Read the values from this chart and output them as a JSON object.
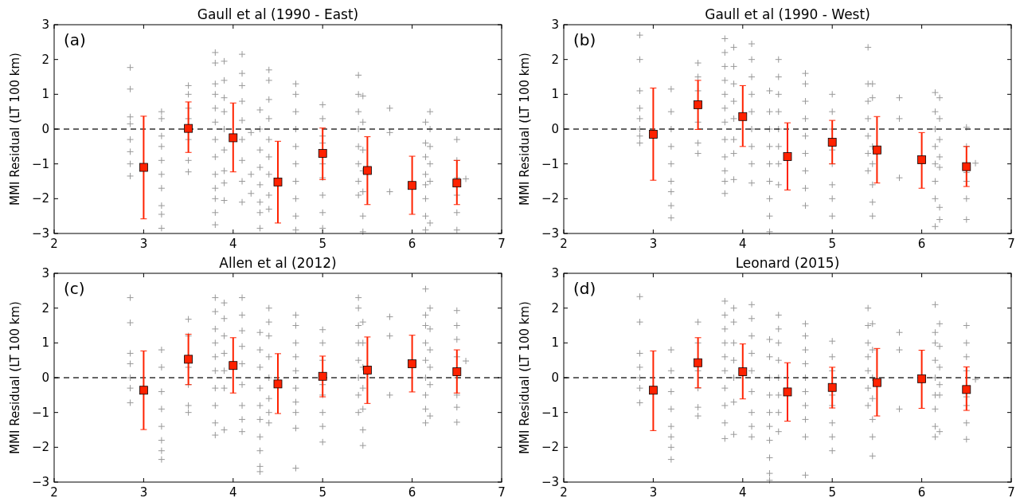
{
  "chart_data": [
    {
      "type": "scatter",
      "title": "Gaull et al (1990 - East)",
      "ylabel": "MMI Residual (LT 100 km)",
      "annotations": [
        "(a)"
      ],
      "xlim": [
        2,
        7
      ],
      "ylim": [
        -3,
        3
      ],
      "xticks": [
        2,
        3,
        4,
        5,
        6,
        7
      ],
      "yticks": [
        -3,
        -2,
        -1,
        0,
        1,
        2,
        3
      ],
      "ref_lines": [
        {
          "axis": "y",
          "value": 0,
          "color": "#333333",
          "line_style": "dashed"
        }
      ],
      "series": [
        {
          "type": "scatter",
          "color": "#999999",
          "marker": "cross",
          "x": [
            2.85,
            2.85,
            2.85,
            2.85,
            2.85,
            2.85,
            2.85,
            2.85,
            3.2,
            3.2,
            3.2,
            3.2,
            3.2,
            3.2,
            3.2,
            3.2,
            3.2,
            3.2,
            3.5,
            3.5,
            3.5,
            3.5,
            3.5,
            3.5,
            3.5,
            3.8,
            3.8,
            3.8,
            3.8,
            3.8,
            3.8,
            3.8,
            3.8,
            3.8,
            3.8,
            3.8,
            3.8,
            3.8,
            3.9,
            3.9,
            3.9,
            3.9,
            3.9,
            3.9,
            3.9,
            3.9,
            3.9,
            4.1,
            4.1,
            4.1,
            4.1,
            4.1,
            4.1,
            4.1,
            4.1,
            4.1,
            4.2,
            4.2,
            4.2,
            4.3,
            4.3,
            4.3,
            4.3,
            4.3,
            4.3,
            4.3,
            4.3,
            4.4,
            4.4,
            4.4,
            4.4,
            4.4,
            4.4,
            4.4,
            4.4,
            4.4,
            4.7,
            4.7,
            4.7,
            4.7,
            4.7,
            4.7,
            4.7,
            4.7,
            4.7,
            4.7,
            5.0,
            5.0,
            5.0,
            5.0,
            5.0,
            5.0,
            5.0,
            5.0,
            5.0,
            5.4,
            5.4,
            5.4,
            5.4,
            5.4,
            5.4,
            5.4,
            5.4,
            5.45,
            5.45,
            5.45,
            5.45,
            5.45,
            5.45,
            5.45,
            5.75,
            5.75,
            5.75,
            6.15,
            6.15,
            6.15,
            6.15,
            6.15,
            6.15,
            6.15,
            6.15,
            6.2,
            6.2,
            6.2,
            6.2,
            6.2,
            6.2,
            6.5,
            6.5,
            6.5,
            6.5,
            6.5,
            6.5,
            6.6
          ],
          "values": [
            1.77,
            1.15,
            0.35,
            0.15,
            -0.3,
            -0.65,
            -1.0,
            -1.35,
            0.5,
            0.3,
            -0.2,
            -0.5,
            -0.9,
            -1.3,
            -1.7,
            -2.2,
            -2.45,
            -2.85,
            1.25,
            1.0,
            0.6,
            0.3,
            -0.3,
            -0.9,
            -1.23,
            2.2,
            1.9,
            1.3,
            1.0,
            0.6,
            0.2,
            -0.3,
            -0.8,
            -1.3,
            -1.7,
            -2.0,
            -2.4,
            -2.75,
            1.95,
            1.4,
            0.9,
            0.5,
            0.0,
            -0.6,
            -1.2,
            -1.55,
            -2.05,
            2.15,
            1.6,
            1.25,
            0.8,
            0.25,
            -0.3,
            -0.9,
            -1.5,
            -2.1,
            -0.1,
            -1.3,
            -1.85,
            0.55,
            0.0,
            -0.6,
            -1.1,
            -1.6,
            -2.1,
            -2.4,
            -2.85,
            1.7,
            1.4,
            0.85,
            0.3,
            -0.3,
            -0.8,
            -1.3,
            -1.9,
            -2.3,
            1.3,
            1.0,
            0.5,
            0.0,
            -0.5,
            -1.0,
            -1.5,
            -2.0,
            -2.5,
            -2.9,
            0.7,
            0.3,
            -0.2,
            -0.4,
            -1.0,
            -1.4,
            -1.9,
            -2.4,
            -2.85,
            1.55,
            1.0,
            0.5,
            0.0,
            -0.5,
            -1.0,
            -1.5,
            -1.9,
            0.95,
            0.2,
            -0.6,
            -1.2,
            -1.8,
            -2.5,
            -2.95,
            0.6,
            -0.1,
            -1.8,
            0.2,
            -0.4,
            -0.8,
            -1.3,
            -1.6,
            -2.0,
            -2.5,
            -2.9,
            0.5,
            0.0,
            -0.5,
            -1.0,
            -1.5,
            -2.7,
            -0.3,
            -0.9,
            -1.4,
            -1.9,
            -2.4,
            -2.9,
            -1.43
          ]
        },
        {
          "type": "scatter",
          "color": "#ff2200",
          "marker": "square",
          "x": [
            3,
            3.5,
            4,
            4.5,
            5,
            5.5,
            6,
            6.5
          ],
          "values": [
            -1.1,
            0.02,
            -0.25,
            -1.52,
            -0.7,
            -1.19,
            -1.62,
            -1.55
          ],
          "errors": [
            [
              -2.58,
              0.37
            ],
            [
              -0.67,
              0.78
            ],
            [
              -1.23,
              0.75
            ],
            [
              -2.7,
              -0.35
            ],
            [
              -1.45,
              0.03
            ],
            [
              -2.17,
              -0.22
            ],
            [
              -2.45,
              -0.78
            ],
            [
              -2.17,
              -0.9
            ]
          ]
        }
      ]
    },
    {
      "type": "scatter",
      "title": "Gaull et al (1990 - West)",
      "ylabel": "MMI Residual (LT 100 km)",
      "annotations": [
        "(b)"
      ],
      "xlim": [
        2,
        7
      ],
      "ylim": [
        -3,
        3
      ],
      "xticks": [
        2,
        3,
        4,
        5,
        6,
        7
      ],
      "yticks": [
        -3,
        -2,
        -1,
        0,
        1,
        2,
        3
      ],
      "ref_lines": [
        {
          "axis": "y",
          "value": 0,
          "color": "#333333",
          "line_style": "dashed"
        }
      ],
      "series": [
        {
          "type": "scatter",
          "color": "#999999",
          "marker": "cross",
          "x": [
            2.85,
            2.85,
            2.85,
            2.85,
            2.85,
            2.85,
            2.85,
            2.85,
            3.2,
            3.2,
            3.2,
            3.2,
            3.2,
            3.2,
            3.2,
            3.2,
            3.2,
            3.5,
            3.5,
            3.5,
            3.5,
            3.5,
            3.5,
            3.8,
            3.8,
            3.8,
            3.8,
            3.8,
            3.8,
            3.8,
            3.8,
            3.8,
            3.8,
            3.8,
            3.8,
            3.9,
            3.9,
            3.9,
            3.9,
            3.9,
            3.9,
            3.9,
            3.9,
            4.1,
            4.1,
            4.1,
            4.1,
            4.1,
            4.1,
            4.1,
            4.1,
            4.1,
            4.3,
            4.3,
            4.3,
            4.3,
            4.3,
            4.3,
            4.3,
            4.3,
            4.3,
            4.4,
            4.4,
            4.4,
            4.4,
            4.4,
            4.4,
            4.4,
            4.4,
            4.7,
            4.7,
            4.7,
            4.7,
            4.7,
            4.7,
            4.7,
            4.7,
            4.7,
            5.0,
            5.0,
            5.0,
            5.0,
            5.0,
            5.0,
            5.0,
            5.0,
            5.4,
            5.4,
            5.4,
            5.4,
            5.4,
            5.4,
            5.4,
            5.45,
            5.45,
            5.45,
            5.45,
            5.45,
            5.45,
            5.45,
            5.75,
            5.75,
            5.75,
            6.15,
            6.15,
            6.15,
            6.15,
            6.15,
            6.15,
            6.15,
            6.15,
            6.2,
            6.2,
            6.2,
            6.2,
            6.2,
            6.2,
            6.2,
            6.5,
            6.5,
            6.5,
            6.5,
            6.5,
            6.5,
            6.6
          ],
          "values": [
            2.7,
            2.0,
            1.1,
            0.6,
            0.3,
            0.0,
            -0.2,
            -0.4,
            1.15,
            0.5,
            0.0,
            -0.5,
            -1.0,
            -1.5,
            -1.8,
            -2.2,
            -2.55,
            1.9,
            1.5,
            1.1,
            0.2,
            -0.4,
            -0.7,
            2.6,
            2.2,
            1.8,
            1.4,
            1.0,
            0.6,
            0.2,
            -0.3,
            -0.8,
            -1.2,
            -1.5,
            -1.85,
            2.35,
            1.8,
            1.3,
            0.8,
            0.3,
            -0.3,
            -0.7,
            -1.45,
            2.45,
            2.0,
            1.5,
            1.0,
            0.5,
            0.0,
            -0.5,
            -1.0,
            -1.55,
            1.1,
            0.5,
            0.0,
            -0.5,
            -1.0,
            -1.5,
            -2.0,
            -2.5,
            -2.95,
            2.0,
            1.5,
            1.0,
            0.5,
            0.0,
            -0.5,
            -1.0,
            -1.6,
            1.6,
            1.3,
            0.8,
            0.3,
            -0.2,
            -0.7,
            -1.2,
            -1.7,
            -2.2,
            1.0,
            0.5,
            0.0,
            -0.6,
            -1.0,
            -1.6,
            -2.0,
            -2.5,
            2.35,
            1.3,
            0.8,
            0.3,
            -0.2,
            -0.7,
            -1.2,
            1.3,
            0.9,
            -0.5,
            -1.0,
            -1.6,
            -2.1,
            -2.5,
            0.9,
            0.3,
            -1.4,
            1.05,
            0.5,
            0.0,
            -0.5,
            -1.0,
            -1.5,
            -2.0,
            -2.8,
            0.9,
            0.3,
            -0.3,
            -0.8,
            -1.1,
            -2.25,
            -2.6,
            0.05,
            -0.5,
            -1.25,
            -1.5,
            -2.0,
            -2.6,
            -0.98
          ]
        },
        {
          "type": "scatter",
          "color": "#ff2200",
          "marker": "square",
          "x": [
            3,
            3.5,
            4,
            4.5,
            5,
            5.5,
            6,
            6.5
          ],
          "values": [
            -0.15,
            0.7,
            0.36,
            -0.79,
            -0.38,
            -0.6,
            -0.88,
            -1.08
          ],
          "errors": [
            [
              -1.47,
              1.18
            ],
            [
              -0.01,
              1.4
            ],
            [
              -0.5,
              1.25
            ],
            [
              -1.75,
              0.18
            ],
            [
              -1.0,
              0.25
            ],
            [
              -1.55,
              0.36
            ],
            [
              -1.7,
              -0.1
            ],
            [
              -1.65,
              -0.5
            ]
          ]
        }
      ]
    },
    {
      "type": "scatter",
      "title": "Allen et al (2012)",
      "ylabel": "MMI Residual (LT 100 km)",
      "annotations": [
        "(c)"
      ],
      "xlim": [
        2,
        7
      ],
      "ylim": [
        -3,
        3
      ],
      "xticks": [
        2,
        3,
        4,
        5,
        6,
        7
      ],
      "yticks": [
        -3,
        -2,
        -1,
        0,
        1,
        2,
        3
      ],
      "ref_lines": [
        {
          "axis": "y",
          "value": 0,
          "color": "#333333",
          "line_style": "dashed"
        }
      ],
      "series": [
        {
          "type": "scatter",
          "color": "#999999",
          "marker": "cross",
          "x": [
            2.85,
            2.85,
            2.85,
            2.85,
            2.85,
            2.85,
            2.85,
            3.2,
            3.2,
            3.2,
            3.2,
            3.2,
            3.2,
            3.2,
            3.2,
            3.5,
            3.5,
            3.5,
            3.5,
            3.5,
            3.5,
            3.8,
            3.8,
            3.8,
            3.8,
            3.8,
            3.8,
            3.8,
            3.8,
            3.8,
            3.8,
            3.9,
            3.9,
            3.9,
            3.9,
            3.9,
            3.9,
            3.9,
            4.1,
            4.1,
            4.1,
            4.1,
            4.1,
            4.1,
            4.1,
            4.1,
            4.1,
            4.3,
            4.3,
            4.3,
            4.3,
            4.3,
            4.3,
            4.3,
            4.3,
            4.3,
            4.3,
            4.4,
            4.4,
            4.4,
            4.4,
            4.4,
            4.4,
            4.4,
            4.4,
            4.7,
            4.7,
            4.7,
            4.7,
            4.7,
            4.7,
            4.7,
            4.7,
            4.7,
            4.7,
            5.0,
            5.0,
            5.0,
            5.0,
            5.0,
            5.0,
            5.0,
            5.0,
            5.4,
            5.4,
            5.4,
            5.4,
            5.4,
            5.4,
            5.4,
            5.4,
            5.45,
            5.45,
            5.45,
            5.45,
            5.45,
            5.45,
            5.45,
            5.75,
            5.75,
            5.75,
            6.15,
            6.15,
            6.15,
            6.15,
            6.15,
            6.15,
            6.15,
            6.15,
            6.15,
            6.2,
            6.2,
            6.2,
            6.2,
            6.2,
            6.2,
            6.5,
            6.5,
            6.5,
            6.5,
            6.5,
            6.5,
            6.5,
            6.5,
            6.6
          ],
          "values": [
            2.3,
            1.58,
            0.7,
            0.4,
            0.0,
            -0.3,
            -0.72,
            0.8,
            0.3,
            -0.4,
            -0.9,
            -1.4,
            -1.8,
            -2.1,
            -2.35,
            1.68,
            1.2,
            0.3,
            -0.2,
            -0.8,
            -1.0,
            2.3,
            1.9,
            1.4,
            1.0,
            0.6,
            0.2,
            -0.3,
            -0.8,
            -1.3,
            -1.65,
            2.15,
            1.7,
            1.2,
            0.7,
            0.2,
            -0.3,
            -1.5,
            2.3,
            1.8,
            1.35,
            0.9,
            0.4,
            -0.2,
            -0.8,
            -1.2,
            -1.55,
            1.3,
            0.8,
            0.3,
            -0.3,
            -0.8,
            -1.2,
            -1.7,
            -2.1,
            -2.55,
            -2.7,
            2.0,
            1.6,
            1.2,
            0.6,
            0.0,
            -0.6,
            -1.0,
            -1.3,
            1.8,
            1.5,
            1.0,
            0.6,
            0.2,
            -0.3,
            -0.7,
            -1.0,
            -1.45,
            -2.6,
            1.38,
            1.0,
            0.5,
            -0.2,
            -0.5,
            -1.0,
            -1.4,
            -1.85,
            2.3,
            2.0,
            1.5,
            1.0,
            0.5,
            0.0,
            -0.5,
            -1.0,
            1.6,
            1.0,
            0.3,
            -0.3,
            -0.9,
            -1.5,
            -1.95,
            1.75,
            1.2,
            -0.5,
            2.55,
            1.8,
            1.5,
            1.0,
            0.5,
            0.0,
            -0.5,
            -0.9,
            -1.3,
            2.0,
            1.4,
            0.8,
            0.3,
            -0.2,
            -1.1,
            1.93,
            1.5,
            1.1,
            0.6,
            0.0,
            -0.5,
            -0.85,
            -1.28,
            0.48
          ]
        },
        {
          "type": "scatter",
          "color": "#ff2200",
          "marker": "square",
          "x": [
            3,
            3.5,
            4,
            4.5,
            5,
            5.5,
            6,
            6.5
          ],
          "values": [
            -0.36,
            0.53,
            0.35,
            -0.18,
            0.04,
            0.22,
            0.4,
            0.17
          ],
          "errors": [
            [
              -1.49,
              0.77
            ],
            [
              -0.2,
              1.25
            ],
            [
              -0.44,
              1.15
            ],
            [
              -1.03,
              0.69
            ],
            [
              -0.55,
              0.62
            ],
            [
              -0.74,
              1.17
            ],
            [
              -0.41,
              1.22
            ],
            [
              -0.44,
              0.8
            ]
          ]
        }
      ]
    },
    {
      "type": "scatter",
      "title": "Leonard (2015)",
      "ylabel": "MMI Residual (LT 100 km)",
      "annotations": [
        "(d)"
      ],
      "xlim": [
        2,
        7
      ],
      "ylim": [
        -3,
        3
      ],
      "xticks": [
        2,
        3,
        4,
        5,
        6,
        7
      ],
      "yticks": [
        -3,
        -2,
        -1,
        0,
        1,
        2,
        3
      ],
      "ref_lines": [
        {
          "axis": "y",
          "value": 0,
          "color": "#333333",
          "line_style": "dashed"
        }
      ],
      "series": [
        {
          "type": "scatter",
          "color": "#999999",
          "marker": "cross",
          "x": [
            2.85,
            2.85,
            2.85,
            2.85,
            2.85,
            2.85,
            2.85,
            3.2,
            3.2,
            3.2,
            3.2,
            3.2,
            3.2,
            3.2,
            3.2,
            3.5,
            3.5,
            3.5,
            3.5,
            3.5,
            3.5,
            3.8,
            3.8,
            3.8,
            3.8,
            3.8,
            3.8,
            3.8,
            3.8,
            3.8,
            3.8,
            3.9,
            3.9,
            3.9,
            3.9,
            3.9,
            3.9,
            3.9,
            4.1,
            4.1,
            4.1,
            4.1,
            4.1,
            4.1,
            4.1,
            4.1,
            4.1,
            4.3,
            4.3,
            4.3,
            4.3,
            4.3,
            4.3,
            4.3,
            4.3,
            4.3,
            4.3,
            4.4,
            4.4,
            4.4,
            4.4,
            4.4,
            4.4,
            4.4,
            4.4,
            4.7,
            4.7,
            4.7,
            4.7,
            4.7,
            4.7,
            4.7,
            4.7,
            4.7,
            4.7,
            5.0,
            5.0,
            5.0,
            5.0,
            5.0,
            5.0,
            5.0,
            5.0,
            5.4,
            5.4,
            5.4,
            5.4,
            5.4,
            5.4,
            5.4,
            5.45,
            5.45,
            5.45,
            5.45,
            5.45,
            5.45,
            5.45,
            5.75,
            5.75,
            5.75,
            6.15,
            6.15,
            6.15,
            6.15,
            6.15,
            6.15,
            6.15,
            6.15,
            6.15,
            6.2,
            6.2,
            6.2,
            6.2,
            6.2,
            6.2,
            6.5,
            6.5,
            6.5,
            6.5,
            6.5,
            6.5,
            6.5,
            6.5,
            6.6
          ],
          "values": [
            2.33,
            1.6,
            0.7,
            0.3,
            0.0,
            -0.3,
            -0.72,
            0.8,
            0.2,
            -0.4,
            -0.9,
            -1.4,
            -1.7,
            -2.0,
            -2.35,
            1.6,
            1.0,
            0.2,
            -0.3,
            -0.85,
            -1.1,
            2.2,
            1.8,
            1.4,
            1.0,
            0.6,
            0.2,
            -0.3,
            -0.8,
            -1.3,
            -1.75,
            2.0,
            1.6,
            1.0,
            0.5,
            0.0,
            -0.7,
            -1.63,
            2.1,
            1.7,
            1.2,
            0.7,
            0.2,
            -0.4,
            -1.0,
            -1.4,
            -1.7,
            1.1,
            0.6,
            0.0,
            -0.5,
            -1.0,
            -1.4,
            -1.8,
            -2.3,
            -2.75,
            -2.95,
            1.8,
            1.4,
            1.0,
            0.5,
            0.0,
            -0.5,
            -1.0,
            -1.55,
            1.55,
            1.2,
            0.8,
            0.4,
            0.0,
            -0.4,
            -0.8,
            -1.2,
            -1.7,
            -2.8,
            1.05,
            0.6,
            0.2,
            -0.5,
            -0.8,
            -1.3,
            -1.7,
            -2.1,
            2.0,
            1.5,
            1.0,
            0.6,
            0.2,
            -0.3,
            -0.8,
            1.55,
            0.8,
            0.0,
            -0.6,
            -1.2,
            -1.7,
            -2.25,
            1.3,
            0.8,
            -0.9,
            2.1,
            1.3,
            1.0,
            0.5,
            0.0,
            -0.5,
            -0.9,
            -1.4,
            -1.7,
            1.55,
            0.9,
            0.3,
            -0.2,
            -0.5,
            -1.55,
            1.5,
            1.0,
            0.6,
            0.2,
            -0.55,
            -0.8,
            -1.3,
            -1.77,
            -0.05
          ]
        },
        {
          "type": "scatter",
          "color": "#ff2200",
          "marker": "square",
          "x": [
            3,
            3.5,
            4,
            4.5,
            5,
            5.5,
            6,
            6.5
          ],
          "values": [
            -0.36,
            0.43,
            0.17,
            -0.41,
            -0.28,
            -0.14,
            -0.03,
            -0.34
          ],
          "errors": [
            [
              -1.52,
              0.77
            ],
            [
              -0.29,
              1.15
            ],
            [
              -0.61,
              0.97
            ],
            [
              -1.25,
              0.43
            ],
            [
              -0.87,
              0.3
            ],
            [
              -1.1,
              0.84
            ],
            [
              -0.88,
              0.79
            ],
            [
              -0.94,
              0.31
            ]
          ]
        }
      ]
    }
  ]
}
